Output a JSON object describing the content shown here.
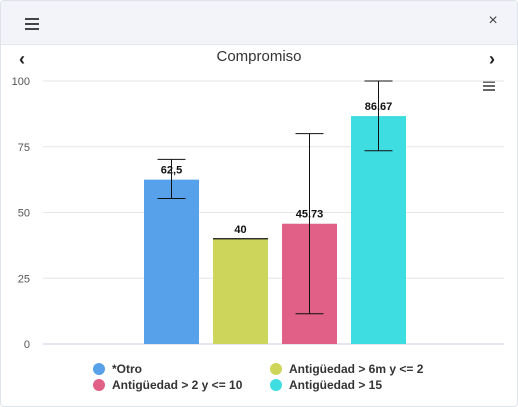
{
  "header": {
    "menu_icon": "hamburger-menu-icon",
    "close_label": "×"
  },
  "nav": {
    "prev_label": "‹",
    "next_label": "›"
  },
  "chart_data": {
    "type": "bar",
    "title": "Compromiso",
    "xlabel": "",
    "ylabel": "",
    "ylim": [
      0,
      100
    ],
    "yticks": [
      0,
      25,
      50,
      75,
      100
    ],
    "grid": true,
    "legend_position": "bottom",
    "series": [
      {
        "name": "*Otro",
        "value": 62.5,
        "label": "62,5",
        "error": [
          55.3,
          70.2
        ],
        "color": "#57a1ea"
      },
      {
        "name": "Antigüedad > 6m y <= 2",
        "value": 40,
        "label": "40",
        "error": [
          40,
          40
        ],
        "color": "#cdd65a"
      },
      {
        "name": "Antigüedad > 2 y <= 10",
        "value": 45.73,
        "label": "45.73",
        "error": [
          11.5,
          80
        ],
        "color": "#e06087"
      },
      {
        "name": "Antigüedad > 15",
        "value": 86.67,
        "label": "86.67",
        "error": [
          73.5,
          100
        ],
        "color": "#3ddde2"
      }
    ]
  }
}
